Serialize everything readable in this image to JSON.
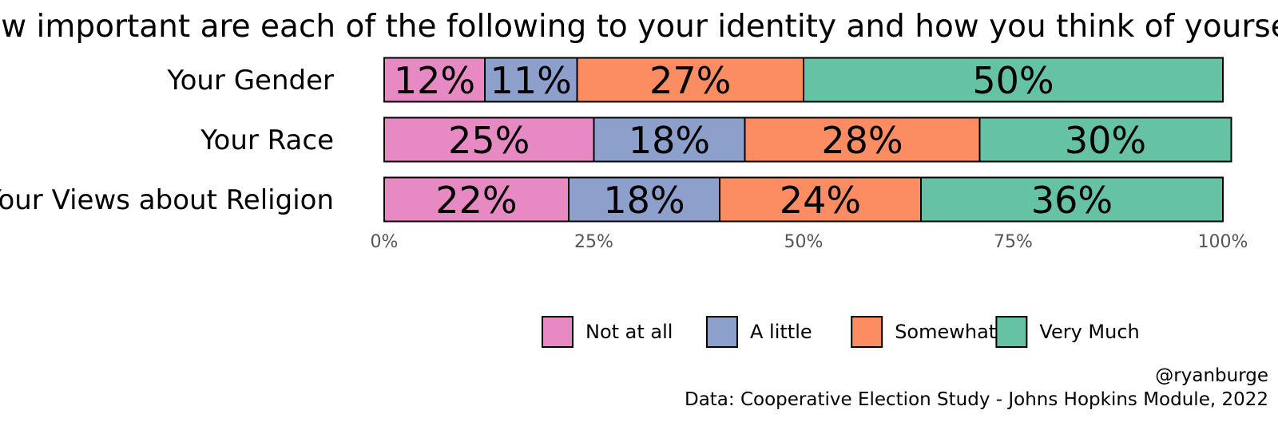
{
  "chart_data": {
    "type": "bar",
    "orientation": "horizontal",
    "stacked": true,
    "title": "How important are each of the following to your identity and how you think of yourself?",
    "categories": [
      "Your Gender",
      "Your Race",
      "Your Views about Religion"
    ],
    "series": [
      {
        "name": "Not at all",
        "color": "#E78AC3",
        "values": [
          12,
          25,
          22
        ],
        "labels": [
          "12%",
          "25%",
          "22%"
        ]
      },
      {
        "name": "A little",
        "color": "#8DA0CB",
        "values": [
          11,
          18,
          18
        ],
        "labels": [
          "11%",
          "18%",
          "18%"
        ]
      },
      {
        "name": "Somewhat",
        "color": "#FC8D62",
        "values": [
          27,
          28,
          24
        ],
        "labels": [
          "27%",
          "28%",
          "24%"
        ]
      },
      {
        "name": "Very Much",
        "color": "#66C2A5",
        "values": [
          50,
          30,
          36
        ],
        "labels": [
          "50%",
          "30%",
          "36%"
        ]
      }
    ],
    "xlim": [
      0,
      100
    ],
    "x_ticks": [
      0,
      25,
      50,
      75,
      100
    ],
    "x_tick_labels": [
      "0%",
      "25%",
      "50%",
      "75%",
      "100%"
    ],
    "xlabel": "",
    "ylabel": "",
    "grid": false,
    "legend_position": "bottom"
  },
  "caption": {
    "handle": "@ryanburge",
    "source": "Data: Cooperative Election Study - Johns Hopkins Module, 2022"
  }
}
